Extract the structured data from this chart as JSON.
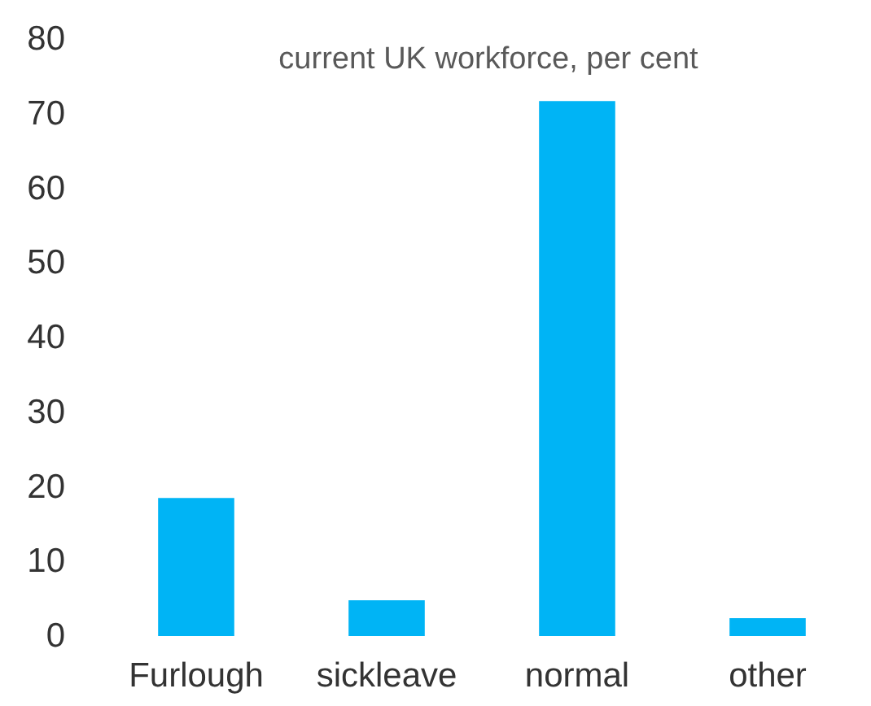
{
  "chart_data": {
    "type": "bar",
    "title": "current UK workforce, per cent",
    "categories": [
      "Furlough",
      "sickleave",
      "normal",
      "other"
    ],
    "values": [
      18.5,
      4.8,
      71.7,
      2.4
    ],
    "color": "#00b4f5",
    "ylim": [
      0,
      80
    ],
    "yticks": [
      0,
      10,
      20,
      30,
      40,
      50,
      60,
      70,
      80
    ],
    "grid": false
  }
}
